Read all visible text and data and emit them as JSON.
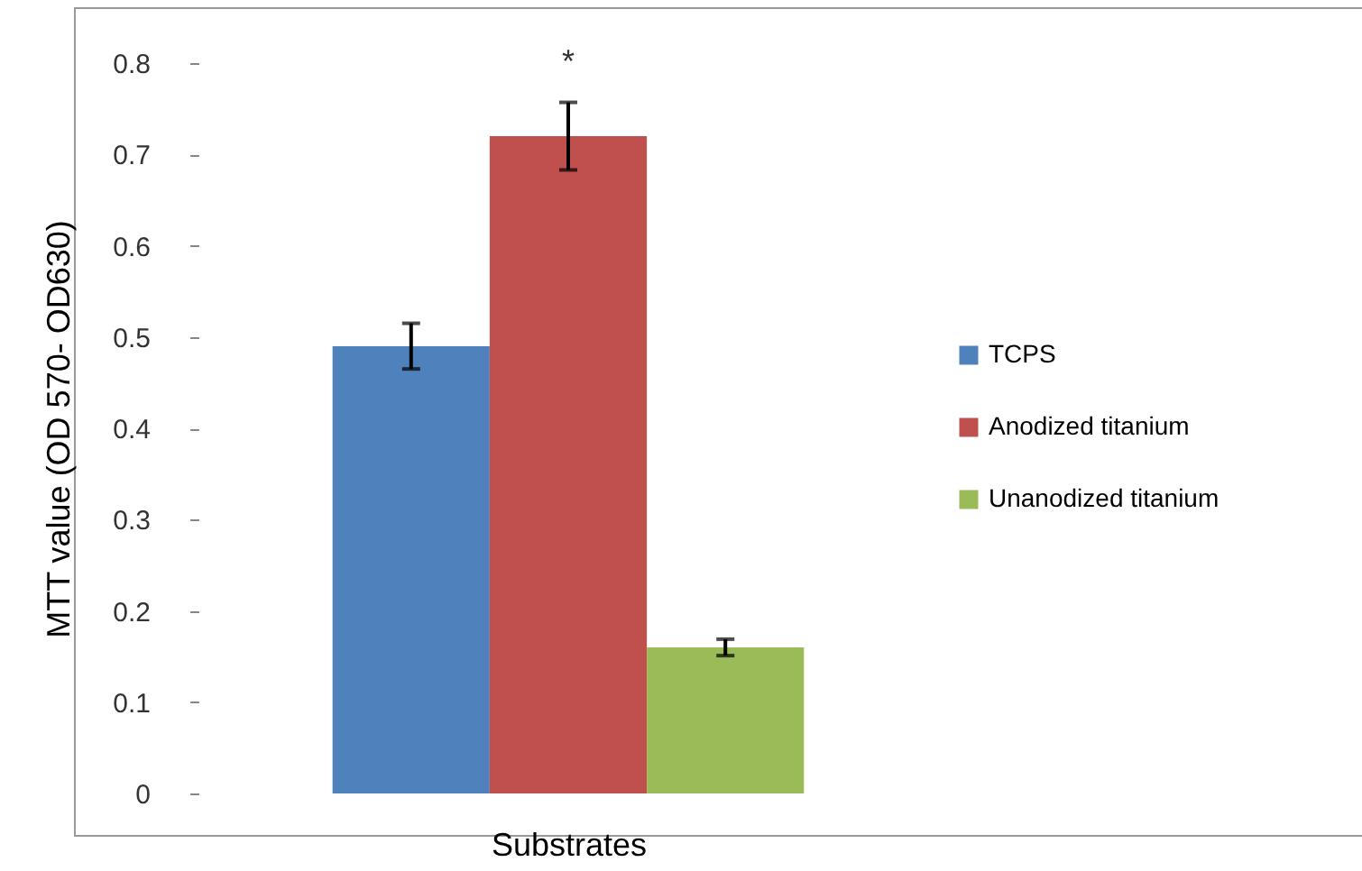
{
  "chart_data": {
    "type": "bar",
    "xlabel": "Substrates",
    "ylabel": "MTT value (OD 570- OD630)",
    "categories": [
      null
    ],
    "series": [
      {
        "name": "TCPS",
        "color": "#4f81bd",
        "values": [
          0.49
        ],
        "errors": [
          0.025
        ]
      },
      {
        "name": "Anodized titanium",
        "color": "#c0504d",
        "values": [
          0.72
        ],
        "errors": [
          0.037
        ]
      },
      {
        "name": "Unanodized titanium",
        "color": "#9bbb59",
        "values": [
          0.16
        ],
        "errors": [
          0.009
        ]
      }
    ],
    "ylim": [
      0,
      0.8
    ],
    "yticks": [
      0,
      0.1,
      0.2,
      0.3,
      0.4,
      0.5,
      0.6,
      0.7,
      0.8
    ],
    "annotations": [
      "*"
    ],
    "grid": false,
    "legend": "right"
  }
}
